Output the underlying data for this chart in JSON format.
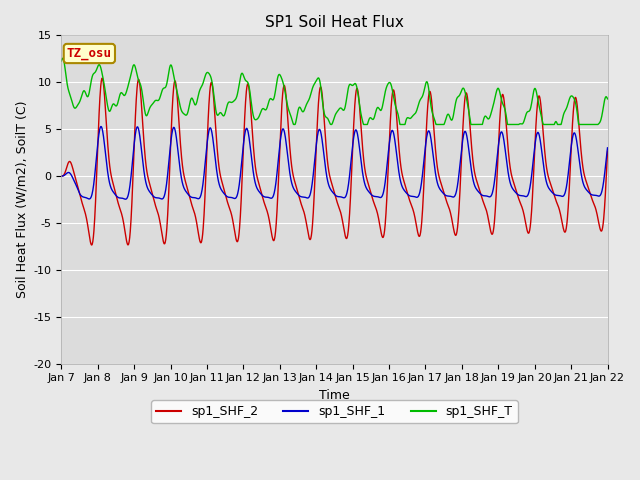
{
  "title": "SP1 Soil Heat Flux",
  "xlabel": "Time",
  "ylabel": "Soil Heat Flux (W/m2), SoilT (C)",
  "ylim": [
    -20,
    15
  ],
  "xlim": [
    0,
    15
  ],
  "x_tick_labels": [
    "Jan 7",
    "Jan 8",
    "Jan 9",
    "Jan 10",
    "Jan 11",
    "Jan 12",
    "Jan 13",
    "Jan 14",
    "Jan 15",
    "Jan 16",
    "Jan 17",
    "Jan 18",
    "Jan 19",
    "Jan 20",
    "Jan 21",
    "Jan 22"
  ],
  "yticks": [
    -20,
    -15,
    -10,
    -5,
    0,
    5,
    10,
    15
  ],
  "fig_bg_color": "#e8e8e8",
  "plot_bg_color": "#dcdcdc",
  "grid_color": "#ffffff",
  "legend_entries": [
    "sp1_SHF_2",
    "sp1_SHF_1",
    "sp1_SHF_T"
  ],
  "line_colors": [
    "#cc0000",
    "#0000cc",
    "#00bb00"
  ],
  "line_width": 1.0,
  "annotation_text": "TZ_osu",
  "annotation_color": "#cc0000",
  "annotation_bg": "#ffffcc",
  "annotation_border": "#aa8800",
  "title_fontsize": 11,
  "axis_label_fontsize": 9,
  "tick_fontsize": 8,
  "legend_fontsize": 9
}
